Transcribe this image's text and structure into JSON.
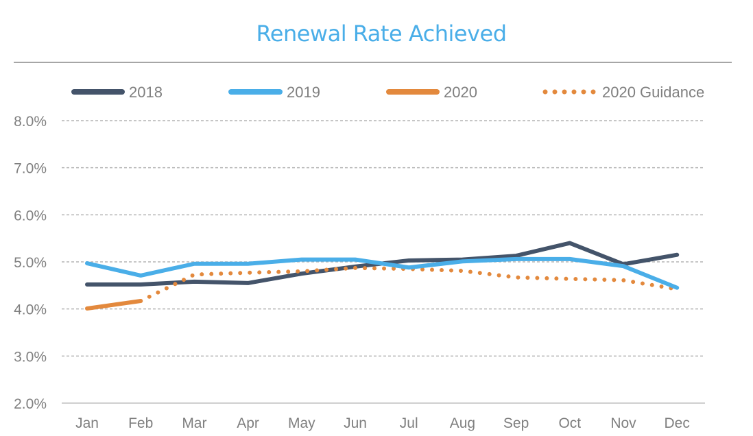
{
  "chart_data": {
    "type": "line",
    "title": "Renewal Rate Achieved",
    "categories": [
      "Jan",
      "Feb",
      "Mar",
      "Apr",
      "May",
      "Jun",
      "Jul",
      "Aug",
      "Sep",
      "Oct",
      "Nov",
      "Dec"
    ],
    "ylim": [
      2.0,
      8.0
    ],
    "yticks": [
      "2.0%",
      "3.0%",
      "4.0%",
      "5.0%",
      "6.0%",
      "7.0%",
      "8.0%"
    ],
    "grid": true,
    "legend_position": "top",
    "series": [
      {
        "name": "2018",
        "color": "#44546a",
        "style": "solid",
        "values": [
          4.52,
          4.52,
          4.58,
          4.55,
          4.75,
          4.9,
          5.03,
          5.05,
          5.13,
          5.4,
          4.95,
          5.15
        ]
      },
      {
        "name": "2019",
        "color": "#4aaee8",
        "style": "solid",
        "values": [
          4.97,
          4.71,
          4.96,
          4.96,
          5.05,
          5.05,
          4.88,
          5.01,
          5.06,
          5.06,
          4.91,
          4.45
        ]
      },
      {
        "name": "2020",
        "color": "#e3893d",
        "style": "solid",
        "values": [
          4.01,
          4.17,
          null,
          null,
          null,
          null,
          null,
          null,
          null,
          null,
          null,
          null
        ]
      },
      {
        "name": "2020 Guidance",
        "color": "#e3893d",
        "style": "dotted",
        "values": [
          null,
          4.17,
          4.73,
          4.77,
          4.8,
          4.87,
          4.85,
          4.81,
          4.67,
          4.64,
          4.61,
          4.42
        ]
      }
    ]
  }
}
